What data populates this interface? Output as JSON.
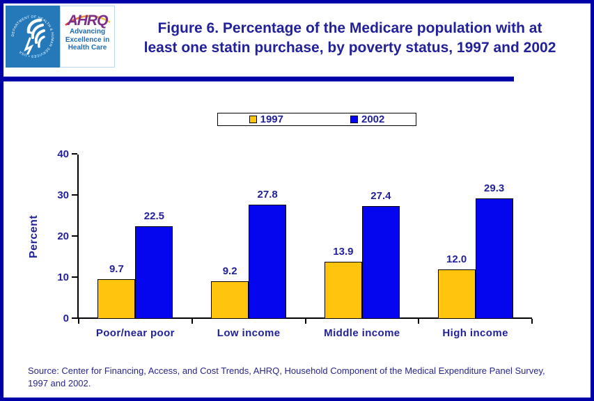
{
  "header": {
    "logo": {
      "hhs_ring_text": "DEPARTMENT OF HEALTH & HUMAN SERVICES • USA",
      "ahrq_acronym": "AHRQ",
      "tagline_lines": [
        "Advancing",
        "Excellence in",
        "Health Care"
      ]
    },
    "title_lines": [
      "Figure 6. Percentage of the Medicare population with at",
      "least one statin purchase, by poverty status, 1997 and 2002"
    ]
  },
  "chart_data": {
    "type": "bar",
    "title": "Figure 6. Percentage of the Medicare population with at least one statin purchase, by poverty status, 1997 and 2002",
    "categories": [
      "Poor/near poor",
      "Low income",
      "Middle income",
      "High income"
    ],
    "series": [
      {
        "name": "1997",
        "color": "#FFC40D",
        "fill_pattern": "dots",
        "values": [
          9.7,
          9.2,
          13.9,
          12.0
        ],
        "labels": [
          "9.7",
          "9.2",
          "13.9",
          "12.0"
        ]
      },
      {
        "name": "2002",
        "color": "#0505EE",
        "fill_pattern": "solid",
        "values": [
          22.5,
          27.8,
          27.4,
          29.3
        ],
        "labels": [
          "22.5",
          "27.8",
          "27.4",
          "29.3"
        ]
      }
    ],
    "xlabel": "",
    "ylabel": "Percent",
    "ylim": [
      0,
      40
    ],
    "yticks": [
      0,
      10,
      20,
      30,
      40
    ],
    "grid": false,
    "legend_position": "top-center"
  },
  "source": {
    "lines": [
      "Source: Center for Financing, Access, and Cost Trends, AHRQ, Household Component of the Medical Expenditure Panel Survey,",
      "1997 and 2002."
    ]
  },
  "colors": {
    "navy_text": "#21219A",
    "border_navy": "#0000A8",
    "axis_black": "#000000",
    "bar_1997": "#FFC40D",
    "bar_1997_dots": "#DE9300",
    "bar_2002": "#0505EE",
    "hhs_blue": "#2579B9",
    "ahrq_purple": "#7B2E8A",
    "tagline_blue": "#1B6CB5"
  }
}
